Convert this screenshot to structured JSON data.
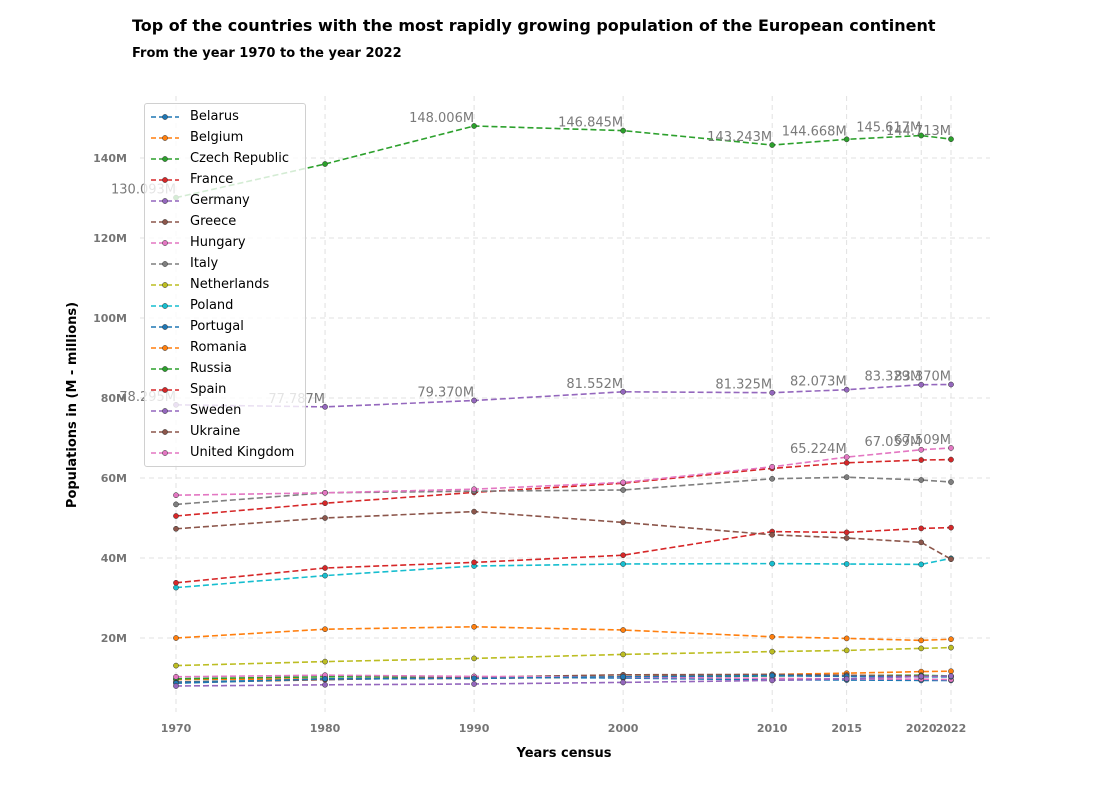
{
  "chart_data": {
    "type": "line",
    "title": "Top of the countries with the most rapidly growing population of the European continent",
    "subtitle": "From the year 1970 to the year 2022",
    "xlabel": "Years census",
    "ylabel": "Populations in (M - millions)",
    "x": [
      1970,
      1980,
      1990,
      2000,
      2010,
      2015,
      2020,
      2022
    ],
    "x_tick_labels": [
      "1970",
      "1980",
      "1990",
      "2000",
      "2010",
      "2015",
      "2020",
      "2022"
    ],
    "y_ticks": [
      20,
      40,
      60,
      80,
      100,
      120,
      140
    ],
    "y_tick_labels": [
      "20M",
      "40M",
      "60M",
      "80M",
      "100M",
      "120M",
      "140M"
    ],
    "ylim": [
      1.5,
      155.5
    ],
    "grid": true,
    "legend_position": "upper-left",
    "line_style": "dashed",
    "series": [
      {
        "name": "Belarus",
        "color": "#1f77b4",
        "values": [
          9.0,
          9.6,
          10.2,
          10.0,
          9.5,
          9.5,
          9.4,
          9.4
        ]
      },
      {
        "name": "Belgium",
        "color": "#ff7f0e",
        "values": [
          9.6,
          9.8,
          9.9,
          10.3,
          10.9,
          11.2,
          11.6,
          11.7
        ]
      },
      {
        "name": "Czech Republic",
        "color": "#2ca02c",
        "values": [
          9.8,
          10.3,
          10.3,
          10.2,
          10.5,
          10.6,
          10.7,
          10.5
        ]
      },
      {
        "name": "France",
        "color": "#d62728",
        "values": [
          50.5,
          53.7,
          56.4,
          58.7,
          62.4,
          63.8,
          64.5,
          64.6
        ]
      },
      {
        "name": "Germany",
        "color": "#9467bd",
        "values": [
          78.295,
          77.787,
          79.37,
          81.552,
          81.325,
          82.073,
          83.329,
          83.37
        ]
      },
      {
        "name": "Greece",
        "color": "#8c564b",
        "values": [
          8.8,
          9.6,
          10.2,
          10.8,
          10.9,
          10.7,
          10.5,
          10.4
        ]
      },
      {
        "name": "Hungary",
        "color": "#e377c2",
        "values": [
          10.3,
          10.7,
          10.4,
          10.2,
          9.9,
          9.8,
          9.7,
          9.6
        ]
      },
      {
        "name": "Italy",
        "color": "#7f7f7f",
        "values": [
          53.4,
          56.3,
          56.7,
          57.0,
          59.8,
          60.2,
          59.5,
          59.0
        ]
      },
      {
        "name": "Netherlands",
        "color": "#bcbd22",
        "values": [
          13.1,
          14.1,
          14.9,
          15.9,
          16.6,
          16.9,
          17.4,
          17.6
        ]
      },
      {
        "name": "Poland",
        "color": "#17becf",
        "values": [
          32.6,
          35.6,
          38.0,
          38.5,
          38.6,
          38.5,
          38.4,
          39.9
        ]
      },
      {
        "name": "Portugal",
        "color": "#1f77b4",
        "values": [
          8.7,
          9.8,
          9.9,
          10.3,
          10.6,
          10.4,
          10.3,
          10.3
        ]
      },
      {
        "name": "Romania",
        "color": "#ff7f0e",
        "values": [
          20.0,
          22.2,
          22.8,
          22.0,
          20.3,
          19.9,
          19.4,
          19.7
        ]
      },
      {
        "name": "Russia",
        "color": "#2ca02c",
        "values": [
          130.093,
          138.5,
          148.006,
          146.845,
          143.243,
          144.668,
          145.617,
          144.713
        ]
      },
      {
        "name": "Spain",
        "color": "#d62728",
        "values": [
          33.8,
          37.5,
          38.9,
          40.7,
          46.6,
          46.4,
          47.4,
          47.6
        ]
      },
      {
        "name": "Sweden",
        "color": "#9467bd",
        "values": [
          8.0,
          8.3,
          8.5,
          8.9,
          9.4,
          9.8,
          10.4,
          10.5
        ]
      },
      {
        "name": "Ukraine",
        "color": "#8c564b",
        "values": [
          47.3,
          50.0,
          51.6,
          48.9,
          45.8,
          45.0,
          43.9,
          39.7
        ]
      },
      {
        "name": "United Kingdom",
        "color": "#e377c2",
        "values": [
          55.7,
          56.3,
          57.2,
          58.9,
          62.8,
          65.224,
          67.059,
          67.509
        ]
      }
    ],
    "annotations": [
      {
        "series": "Russia",
        "labels": [
          "130.093M",
          "",
          "148.006M",
          "146.845M",
          "143.243M",
          "144.668M",
          "145.617M",
          "144.713M"
        ]
      },
      {
        "series": "Germany",
        "labels": [
          "78.295M",
          "77.787M",
          "79.370M",
          "81.552M",
          "81.325M",
          "82.073M",
          "83.329M",
          "83.370M"
        ]
      },
      {
        "series": "United Kingdom",
        "labels": [
          "",
          "",
          "",
          "",
          "",
          "65.224M",
          "67.059M",
          "67.509M"
        ]
      }
    ]
  }
}
